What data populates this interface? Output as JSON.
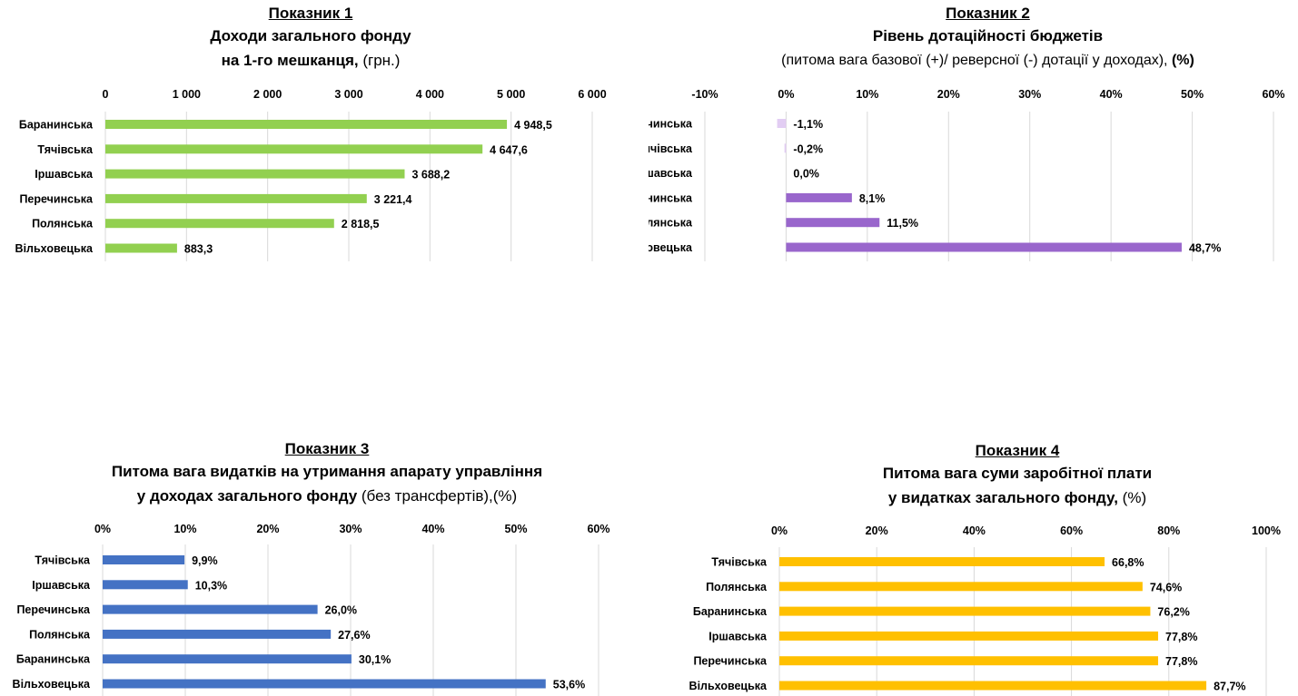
{
  "charts": [
    {
      "id": "c1",
      "title": {
        "header": "Показник 1",
        "line2_bold": "Доходи загального фонду",
        "line2_normal": "",
        "line3_bold": "на 1-го мешканця,",
        "line3_normal": " (грн.)"
      },
      "ticks": [
        "0",
        "1 000",
        "2 000",
        "3 000",
        "4 000",
        "5 000",
        "6 000"
      ]
    },
    {
      "id": "c2",
      "title": {
        "header": "Показник 2",
        "line2_bold": "Рівень дотаційності бюджетів",
        "line2_normal": "",
        "line3_bold": "",
        "line3_normal": "(питома вага базової (+)/ реверсної (-) дотації у доходах),",
        "line3_tail_bold": " (%)"
      },
      "ticks": [
        "-10%",
        "0%",
        "10%",
        "20%",
        "30%",
        "40%",
        "50%",
        "60%"
      ]
    },
    {
      "id": "c3",
      "title": {
        "header": "Показник 3",
        "line2_bold": "Питома вага видатків на утримання апарату управління",
        "line2_normal": "",
        "line3_bold": "у доходах загального фонду",
        "line3_normal": " (без трансфертів),(%)"
      },
      "ticks": [
        "0%",
        "10%",
        "20%",
        "30%",
        "40%",
        "50%",
        "60%"
      ]
    },
    {
      "id": "c4",
      "title": {
        "header": "Показник 4",
        "line2_bold": "Питома вага суми заробітної плати",
        "line2_normal": "",
        "line3_bold": "у видатках загального фонду,",
        "line3_normal": " (%)"
      },
      "ticks": [
        "0%",
        "20%",
        "40%",
        "60%",
        "80%",
        "100%"
      ]
    }
  ],
  "chart_data": [
    {
      "type": "bar",
      "orientation": "horizontal",
      "title": "Показник 1 Доходи загального фонду на 1-го мешканця, (грн.)",
      "categories": [
        "Баранинська",
        "Тячівська",
        "Іршавська",
        "Перечинська",
        "Полянська",
        "Вільховецька"
      ],
      "values": [
        4948.5,
        4647.6,
        3688.2,
        3221.4,
        2818.5,
        883.3
      ],
      "labels": [
        "4 948,5",
        "4 647,6",
        "3 688,2",
        "3 221,4",
        "2 818,5",
        "883,3"
      ],
      "xlim": [
        0,
        6000
      ],
      "grid": true,
      "color": "#92d050"
    },
    {
      "type": "bar",
      "orientation": "horizontal",
      "title": "Показник 2 Рівень дотаційності бюджетів",
      "categories": [
        "Перечинська",
        "Тячівська",
        "Іршавська",
        "Баранинська",
        "Полянська",
        "Вільховецька"
      ],
      "values": [
        -1.1,
        -0.2,
        0.0,
        8.1,
        11.5,
        48.7
      ],
      "labels": [
        "-1,1%",
        "-0,2%",
        "0,0%",
        "8,1%",
        "11,5%",
        "48,7%"
      ],
      "xlim": [
        -10,
        60
      ],
      "grid": true,
      "color": "#9966cc",
      "negative_color": "#e2cdf3"
    },
    {
      "type": "bar",
      "orientation": "horizontal",
      "title": "Показник 3 Питома вага видатків на утримання апарату управління у доходах загального фонду",
      "categories": [
        "Тячівська",
        "Іршавська",
        "Перечинська",
        "Полянська",
        "Баранинська",
        "Вільховецька"
      ],
      "values": [
        9.9,
        10.3,
        26.0,
        27.6,
        30.1,
        53.6
      ],
      "labels": [
        "9,9%",
        "10,3%",
        "26,0%",
        "27,6%",
        "30,1%",
        "53,6%"
      ],
      "xlim": [
        0,
        60
      ],
      "grid": true,
      "color": "#4472c4"
    },
    {
      "type": "bar",
      "orientation": "horizontal",
      "title": "Показник 4 Питома вага суми заробітної плати у видатках загального фонду",
      "categories": [
        "Тячівська",
        "Полянська",
        "Баранинська",
        "Іршавська",
        "Перечинська",
        "Вільховецька"
      ],
      "values": [
        66.8,
        74.6,
        76.2,
        77.8,
        77.8,
        87.7
      ],
      "labels": [
        "66,8%",
        "74,6%",
        "76,2%",
        "77,8%",
        "77,8%",
        "87,7%"
      ],
      "xlim": [
        0,
        100
      ],
      "grid": true,
      "color": "#ffc000"
    }
  ]
}
